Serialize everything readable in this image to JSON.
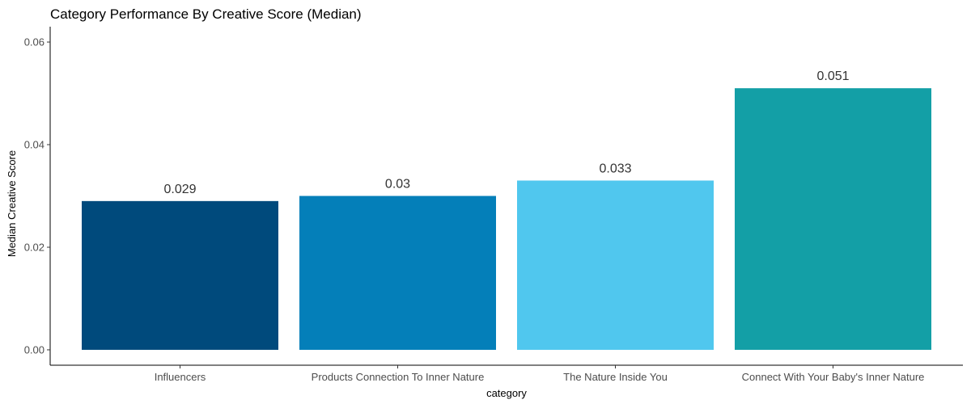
{
  "chart_data": {
    "type": "bar",
    "title": "Category Performance By Creative Score (Median)",
    "xlabel": "category",
    "ylabel": "Median Creative Score",
    "categories": [
      "Influencers",
      "Products Connection To Inner Nature",
      "The Nature Inside You",
      "Connect With Your Baby's Inner Nature"
    ],
    "values": [
      0.029,
      0.03,
      0.033,
      0.051
    ],
    "data_labels": [
      "0.029",
      "0.03",
      "0.033",
      "0.051"
    ],
    "colors": [
      "#004a7c",
      "#047fb9",
      "#50c7ee",
      "#139fa6"
    ],
    "ylim": [
      -0.003,
      0.063
    ],
    "yticks": [
      0,
      0.02,
      0.04,
      0.06
    ],
    "ytick_labels": [
      "0.00",
      "0.02",
      "0.04",
      "0.06"
    ],
    "grid": false,
    "legend": "none"
  }
}
